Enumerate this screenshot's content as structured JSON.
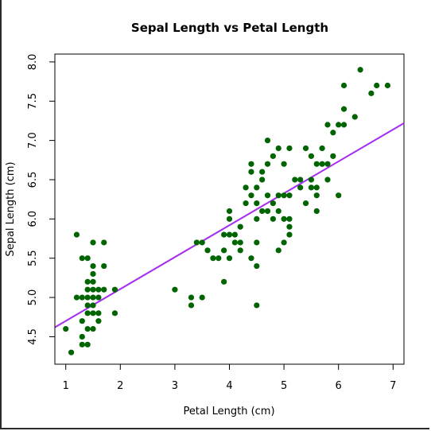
{
  "chart_data": {
    "type": "scatter",
    "title": "Sepal Length vs Petal Length",
    "xlabel": "Petal Length (cm)",
    "ylabel": "Sepal Length (cm)",
    "xlim": [
      0.8,
      7.2
    ],
    "ylim": [
      4.15,
      8.1
    ],
    "xticks": [
      "1",
      "2",
      "3",
      "4",
      "5",
      "6",
      "7"
    ],
    "yticks": [
      "4.5",
      "5.0",
      "5.5",
      "6.0",
      "6.5",
      "7.0",
      "7.5",
      "8.0"
    ],
    "grid": false,
    "point_color": "#006400",
    "line_color": "#a52cf0",
    "regression_line": {
      "x": [
        0.8,
        7.2
      ],
      "y": [
        4.62,
        7.22
      ]
    },
    "points": [
      [
        1.0,
        4.6
      ],
      [
        1.1,
        4.3
      ],
      [
        1.2,
        5.8
      ],
      [
        1.2,
        5.0
      ],
      [
        1.3,
        5.5
      ],
      [
        1.3,
        5.0
      ],
      [
        1.3,
        4.5
      ],
      [
        1.3,
        4.4
      ],
      [
        1.3,
        4.7
      ],
      [
        1.4,
        5.5
      ],
      [
        1.4,
        5.1
      ],
      [
        1.4,
        5.0
      ],
      [
        1.4,
        4.9
      ],
      [
        1.4,
        4.6
      ],
      [
        1.4,
        4.8
      ],
      [
        1.4,
        4.4
      ],
      [
        1.4,
        5.2
      ],
      [
        1.5,
        5.7
      ],
      [
        1.5,
        5.4
      ],
      [
        1.5,
        5.3
      ],
      [
        1.5,
        5.2
      ],
      [
        1.5,
        5.1
      ],
      [
        1.5,
        5.0
      ],
      [
        1.5,
        4.9
      ],
      [
        1.5,
        4.6
      ],
      [
        1.5,
        4.8
      ],
      [
        1.6,
        5.0
      ],
      [
        1.6,
        4.8
      ],
      [
        1.6,
        4.7
      ],
      [
        1.6,
        5.1
      ],
      [
        1.7,
        5.7
      ],
      [
        1.7,
        5.4
      ],
      [
        1.7,
        5.1
      ],
      [
        1.9,
        5.1
      ],
      [
        1.9,
        4.8
      ],
      [
        3.0,
        5.1
      ],
      [
        3.3,
        5.0
      ],
      [
        3.3,
        4.9
      ],
      [
        3.5,
        5.0
      ],
      [
        3.5,
        5.7
      ],
      [
        3.6,
        5.6
      ],
      [
        3.7,
        5.5
      ],
      [
        3.8,
        5.5
      ],
      [
        3.9,
        5.8
      ],
      [
        3.9,
        5.6
      ],
      [
        3.9,
        5.2
      ],
      [
        4.0,
        6.1
      ],
      [
        4.0,
        6.0
      ],
      [
        4.0,
        5.8
      ],
      [
        4.0,
        5.5
      ],
      [
        4.1,
        5.8
      ],
      [
        4.1,
        5.7
      ],
      [
        4.2,
        5.9
      ],
      [
        4.2,
        5.6
      ],
      [
        4.2,
        5.7
      ],
      [
        4.3,
        6.4
      ],
      [
        4.3,
        6.2
      ],
      [
        4.4,
        6.7
      ],
      [
        4.4,
        6.6
      ],
      [
        4.4,
        6.3
      ],
      [
        4.4,
        5.5
      ],
      [
        4.5,
        6.4
      ],
      [
        4.5,
        6.2
      ],
      [
        4.5,
        6.0
      ],
      [
        4.5,
        5.7
      ],
      [
        4.5,
        5.4
      ],
      [
        4.5,
        4.9
      ],
      [
        4.6,
        6.6
      ],
      [
        4.6,
        6.5
      ],
      [
        4.6,
        6.1
      ],
      [
        4.7,
        7.0
      ],
      [
        4.7,
        6.7
      ],
      [
        4.7,
        6.3
      ],
      [
        4.7,
        6.1
      ],
      [
        4.8,
        6.8
      ],
      [
        4.8,
        6.2
      ],
      [
        4.8,
        6.0
      ],
      [
        4.9,
        6.9
      ],
      [
        4.9,
        6.3
      ],
      [
        4.9,
        6.1
      ],
      [
        4.9,
        5.6
      ],
      [
        5.0,
        6.7
      ],
      [
        5.0,
        6.3
      ],
      [
        5.0,
        6.0
      ],
      [
        5.0,
        5.7
      ],
      [
        5.1,
        6.9
      ],
      [
        5.1,
        6.3
      ],
      [
        5.1,
        6.0
      ],
      [
        5.1,
        5.9
      ],
      [
        5.1,
        5.8
      ],
      [
        5.2,
        6.5
      ],
      [
        5.3,
        6.5
      ],
      [
        5.3,
        6.4
      ],
      [
        5.4,
        6.9
      ],
      [
        5.4,
        6.2
      ],
      [
        5.5,
        6.8
      ],
      [
        5.5,
        6.5
      ],
      [
        5.5,
        6.4
      ],
      [
        5.6,
        6.7
      ],
      [
        5.6,
        6.4
      ],
      [
        5.6,
        6.3
      ],
      [
        5.6,
        6.1
      ],
      [
        5.7,
        6.9
      ],
      [
        5.7,
        6.7
      ],
      [
        5.8,
        6.7
      ],
      [
        5.8,
        7.2
      ],
      [
        5.8,
        6.5
      ],
      [
        5.9,
        7.1
      ],
      [
        5.9,
        6.8
      ],
      [
        6.0,
        7.2
      ],
      [
        6.0,
        6.3
      ],
      [
        6.1,
        7.7
      ],
      [
        6.1,
        7.4
      ],
      [
        6.1,
        7.2
      ],
      [
        6.3,
        7.3
      ],
      [
        6.4,
        7.9
      ],
      [
        6.6,
        7.6
      ],
      [
        6.7,
        7.7
      ],
      [
        6.9,
        7.7
      ],
      [
        3.4,
        5.7
      ]
    ]
  }
}
